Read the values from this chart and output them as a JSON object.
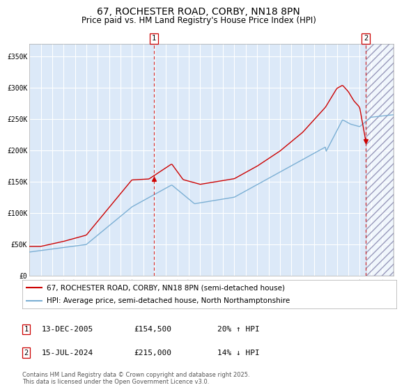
{
  "title": "67, ROCHESTER ROAD, CORBY, NN18 8PN",
  "subtitle": "Price paid vs. HM Land Registry's House Price Index (HPI)",
  "ylim": [
    0,
    370000
  ],
  "xlim_start": 1995.0,
  "xlim_end": 2027.0,
  "yticks": [
    0,
    50000,
    100000,
    150000,
    200000,
    250000,
    300000,
    350000
  ],
  "ytick_labels": [
    "£0",
    "£50K",
    "£100K",
    "£150K",
    "£200K",
    "£250K",
    "£300K",
    "£350K"
  ],
  "xticks": [
    1995,
    1996,
    1997,
    1998,
    1999,
    2000,
    2001,
    2002,
    2003,
    2004,
    2005,
    2006,
    2007,
    2008,
    2009,
    2010,
    2011,
    2012,
    2013,
    2014,
    2015,
    2016,
    2017,
    2018,
    2019,
    2020,
    2021,
    2022,
    2023,
    2024,
    2025,
    2026,
    2027
  ],
  "bg_color": "#dce9f8",
  "hatch_region_start": 2024.583,
  "hatch_region_end": 2027.0,
  "sale1_x": 2005.95,
  "sale1_y": 154500,
  "sale2_x": 2024.54,
  "sale2_y": 215000,
  "sale1_label": "1",
  "sale2_label": "2",
  "legend_line1": "67, ROCHESTER ROAD, CORBY, NN18 8PN (semi-detached house)",
  "legend_line2": "HPI: Average price, semi-detached house, North Northamptonshire",
  "annotation1_date": "13-DEC-2005",
  "annotation1_price": "£154,500",
  "annotation1_hpi": "20% ↑ HPI",
  "annotation2_date": "15-JUL-2024",
  "annotation2_price": "£215,000",
  "annotation2_hpi": "14% ↓ HPI",
  "footer": "Contains HM Land Registry data © Crown copyright and database right 2025.\nThis data is licensed under the Open Government Licence v3.0.",
  "red_color": "#cc0000",
  "blue_color": "#7bafd4",
  "title_fontsize": 10,
  "subtitle_fontsize": 8.5,
  "tick_fontsize": 7
}
